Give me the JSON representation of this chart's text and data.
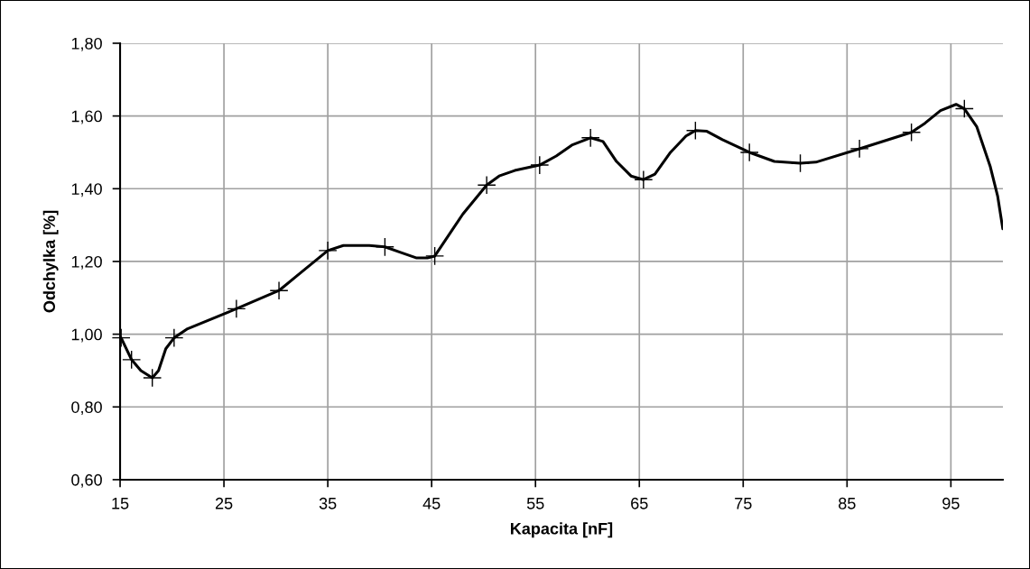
{
  "chart_data": {
    "type": "line",
    "xlabel": "Kapacita [nF]",
    "ylabel": "Odchylka [%]",
    "series": [
      {
        "color": "#000000",
        "marker": "none",
        "line_style": "solid",
        "x": [
          15.1,
          16.1,
          17.0,
          18.1,
          18.7,
          19.4,
          20.2,
          21.5,
          26.2,
          30.3,
          32.0,
          35.0,
          36.5,
          39.0,
          40.5,
          42.0,
          43.5,
          44.6,
          45.3,
          46.0,
          48.0,
          50.3,
          51.5,
          53.0,
          55.4,
          57.0,
          58.5,
          60.3,
          61.5,
          62.8,
          64.2,
          65.4,
          66.5,
          68.0,
          69.5,
          70.4,
          71.5,
          73.0,
          75.6,
          78.0,
          80.5,
          82.0,
          86.2,
          91.2,
          92.5,
          94.0,
          95.5,
          96.3,
          97.5,
          98.8,
          99.5,
          100
        ],
        "values": [
          0.99,
          0.93,
          0.9,
          0.88,
          0.9,
          0.96,
          0.99,
          1.015,
          1.07,
          1.12,
          1.16,
          1.23,
          1.244,
          1.244,
          1.24,
          1.225,
          1.21,
          1.21,
          1.215,
          1.245,
          1.33,
          1.41,
          1.435,
          1.45,
          1.465,
          1.49,
          1.52,
          1.54,
          1.53,
          1.475,
          1.435,
          1.425,
          1.44,
          1.5,
          1.545,
          1.56,
          1.558,
          1.535,
          1.5,
          1.475,
          1.47,
          1.473,
          1.51,
          1.555,
          1.58,
          1.615,
          1.632,
          1.62,
          1.57,
          1.46,
          1.38,
          1.29
        ]
      },
      {
        "type": "scatter",
        "color": "#000000",
        "marker": "cross",
        "x": [
          15.1,
          16.1,
          18.1,
          20.2,
          26.2,
          30.3,
          35.0,
          40.5,
          45.3,
          50.3,
          55.4,
          60.3,
          65.4,
          70.4,
          75.6,
          80.5,
          86.2,
          91.2,
          96.3
        ],
        "values": [
          0.99,
          0.93,
          0.88,
          0.99,
          1.07,
          1.12,
          1.23,
          1.24,
          1.215,
          1.41,
          1.465,
          1.54,
          1.425,
          1.56,
          1.5,
          1.47,
          1.51,
          1.555,
          1.62
        ]
      }
    ],
    "xlim": [
      15,
      100
    ],
    "xticks": [
      15,
      25,
      35,
      45,
      55,
      65,
      75,
      85,
      95
    ],
    "ylim": [
      0.6,
      1.8
    ],
    "yticks": [
      {
        "value": 0.6,
        "label": "0,60"
      },
      {
        "value": 0.8,
        "label": "0,80"
      },
      {
        "value": 1.0,
        "label": "1,00"
      },
      {
        "value": 1.2,
        "label": "1,20"
      },
      {
        "value": 1.4,
        "label": "1,40"
      },
      {
        "value": 1.6,
        "label": "1,60"
      },
      {
        "value": 1.8,
        "label": "1,80"
      }
    ],
    "grid": true,
    "legend": false
  }
}
